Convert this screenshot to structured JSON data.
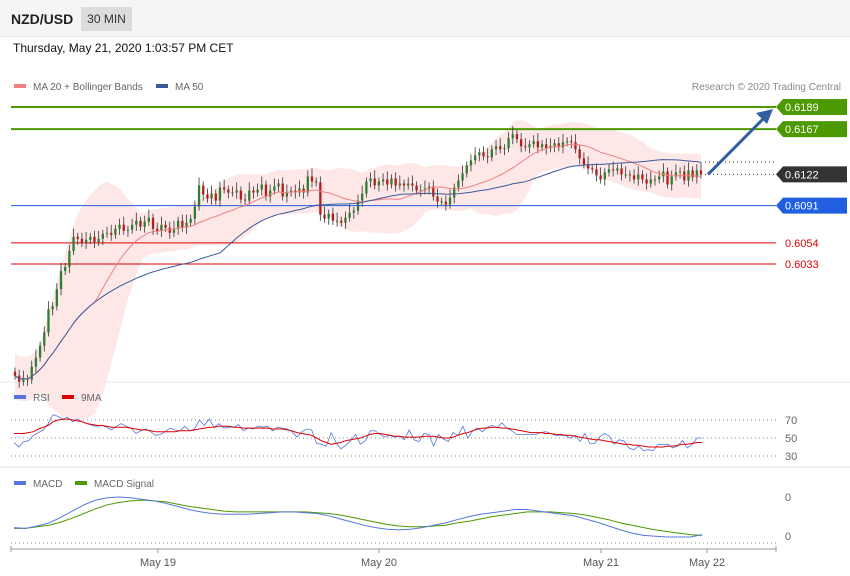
{
  "header": {
    "pair": "NZD/USD",
    "timeframe": "30 MIN",
    "datetime": "Thursday, May 21, 2020 1:03:57 PM CET"
  },
  "colors": {
    "resistance": "#4c9a00",
    "current": "#333333",
    "pivot": "#1f5fe0",
    "support": "#e00000",
    "ma20": "#f08080",
    "ma50": "#3a5a9a",
    "band": "#fde3e3",
    "up_candle": "#2e7d32",
    "down_candle": "#b71c1c",
    "rsi": "#5577dd",
    "rsi_ma": "#dd0000",
    "macd": "#5577dd",
    "macd_signal": "#4c9a00",
    "arrow": "#2f5fa0"
  },
  "chart_data": [
    {
      "type": "candlestick",
      "legend": [
        {
          "label": "MA 20 + Bollinger Bands",
          "color": "#f08080"
        },
        {
          "label": "MA 50",
          "color": "#3a5a9a"
        }
      ],
      "credit": "Research © 2020 Trading Central",
      "x_ticks": [
        "May 19",
        "May 20",
        "May 21",
        "May 22"
      ],
      "levels": [
        {
          "value": 0.6189,
          "label": "0.6189",
          "kind": "resistance"
        },
        {
          "value": 0.6167,
          "label": "0.6167",
          "kind": "resistance"
        },
        {
          "value": 0.6122,
          "label": "0.6122",
          "kind": "current"
        },
        {
          "value": 0.6091,
          "label": "0.6091",
          "kind": "pivot"
        },
        {
          "value": 0.6054,
          "label": "0.6054",
          "kind": "support"
        },
        {
          "value": 0.6033,
          "label": "0.6033",
          "kind": "support"
        }
      ],
      "close_series": [
        0.5922,
        0.5916,
        0.5919,
        0.5918,
        0.5931,
        0.594,
        0.5952,
        0.5965,
        0.5988,
        0.5991,
        0.6008,
        0.6026,
        0.603,
        0.6046,
        0.606,
        0.6058,
        0.6054,
        0.6057,
        0.606,
        0.6055,
        0.6058,
        0.6063,
        0.6064,
        0.6062,
        0.6068,
        0.6072,
        0.6066,
        0.6067,
        0.6072,
        0.6076,
        0.607,
        0.6075,
        0.6079,
        0.6068,
        0.6066,
        0.6072,
        0.6069,
        0.6064,
        0.6068,
        0.6076,
        0.6069,
        0.6074,
        0.6078,
        0.609,
        0.6111,
        0.6102,
        0.6098,
        0.6103,
        0.6096,
        0.6109,
        0.6107,
        0.6104,
        0.6104,
        0.6106,
        0.6097,
        0.6096,
        0.6106,
        0.6104,
        0.6107,
        0.6112,
        0.61,
        0.6106,
        0.611,
        0.6113,
        0.61,
        0.6104,
        0.6106,
        0.6104,
        0.6108,
        0.6104,
        0.612,
        0.6115,
        0.6114,
        0.6082,
        0.6078,
        0.6083,
        0.6076,
        0.6076,
        0.6074,
        0.6079,
        0.6084,
        0.6086,
        0.6096,
        0.6103,
        0.6115,
        0.6118,
        0.6111,
        0.6115,
        0.6117,
        0.6112,
        0.6118,
        0.6111,
        0.6113,
        0.6111,
        0.6113,
        0.6111,
        0.6106,
        0.6106,
        0.6108,
        0.611,
        0.61,
        0.6095,
        0.6095,
        0.6092,
        0.6099,
        0.6109,
        0.6116,
        0.6123,
        0.6131,
        0.6136,
        0.6141,
        0.6144,
        0.614,
        0.6139,
        0.6147,
        0.615,
        0.6147,
        0.6148,
        0.6158,
        0.6162,
        0.6157,
        0.615,
        0.6149,
        0.6152,
        0.6155,
        0.6149,
        0.6152,
        0.6148,
        0.615,
        0.6153,
        0.6149,
        0.6154,
        0.6155,
        0.6154,
        0.6147,
        0.6138,
        0.6132,
        0.6128,
        0.6127,
        0.6121,
        0.6117,
        0.6124,
        0.6127,
        0.6126,
        0.6128,
        0.6122,
        0.6122,
        0.6121,
        0.6117,
        0.6122,
        0.6117,
        0.6113,
        0.6117,
        0.6117,
        0.612,
        0.6125,
        0.6112,
        0.612,
        0.6124,
        0.6125,
        0.6116,
        0.6126,
        0.6119,
        0.6126,
        0.6122
      ],
      "y_range": [
        0.5905,
        0.62
      ]
    },
    {
      "type": "line",
      "legend": [
        {
          "label": "RSI",
          "color": "#5577dd"
        },
        {
          "label": "9MA",
          "color": "#dd0000"
        }
      ],
      "y_ticks": [
        "70",
        "50",
        "30"
      ],
      "rsi": [
        45,
        40,
        46,
        47,
        53,
        56,
        59,
        66,
        76,
        74,
        71,
        73,
        68,
        71,
        68,
        66,
        64,
        63,
        64,
        62,
        59,
        63,
        66,
        63,
        61,
        55,
        58,
        60,
        57,
        53,
        54,
        57,
        61,
        59,
        58,
        63,
        58,
        60,
        70,
        64,
        71,
        62,
        66,
        61,
        62,
        62,
        65,
        58,
        61,
        60,
        63,
        62,
        63,
        58,
        62,
        61,
        60,
        57,
        51,
        57,
        60,
        59,
        44,
        43,
        41,
        56,
        45,
        38,
        42,
        47,
        54,
        43,
        47,
        58,
        58,
        54,
        51,
        53,
        51,
        52,
        48,
        59,
        48,
        46,
        55,
        54,
        41,
        54,
        49,
        46,
        56,
        53,
        63,
        50,
        58,
        61,
        57,
        62,
        64,
        61,
        67,
        61,
        58,
        54,
        54,
        54,
        54,
        54,
        56,
        57,
        55,
        53,
        53,
        53,
        50,
        53,
        46,
        55,
        44,
        44,
        51,
        55,
        52,
        43,
        48,
        47,
        39,
        37,
        41,
        36,
        37,
        36,
        43,
        43,
        43,
        39,
        41,
        47,
        39,
        43,
        50,
        50
      ],
      "rsi_ma": [
        55,
        55,
        55,
        56,
        57,
        60,
        62,
        64,
        68,
        70,
        71,
        71,
        70,
        69,
        68,
        66,
        65,
        64,
        64,
        63,
        62,
        62,
        62,
        62,
        61,
        60,
        59,
        59,
        58,
        57,
        57,
        57,
        57,
        57,
        58,
        58,
        58,
        59,
        60,
        61,
        62,
        62,
        63,
        63,
        63,
        62,
        62,
        61,
        61,
        61,
        61,
        61,
        61,
        60,
        60,
        60,
        59,
        58,
        56,
        55,
        54,
        53,
        50,
        47,
        45,
        43,
        44,
        45,
        47,
        48,
        49,
        50,
        52,
        54,
        55,
        55,
        54,
        53,
        52,
        52,
        51,
        51,
        51,
        51,
        52,
        52,
        52,
        51,
        50,
        50,
        51,
        53,
        55,
        56,
        58,
        60,
        61,
        61,
        62,
        62,
        61,
        61,
        60,
        59,
        58,
        57,
        56,
        56,
        56,
        55,
        55,
        54,
        54,
        53,
        53,
        52,
        51,
        50,
        49,
        48,
        48,
        47,
        46,
        45,
        44,
        43,
        43,
        42,
        42,
        41,
        40,
        40,
        40,
        40,
        41,
        41,
        42,
        43,
        43,
        44,
        45,
        45
      ]
    },
    {
      "type": "line",
      "legend": [
        {
          "label": "MACD",
          "color": "#5577dd"
        },
        {
          "label": "MACD Signal",
          "color": "#4c9a00"
        }
      ],
      "y_ticks": [
        "0",
        "0"
      ],
      "macd": [
        0.0001,
        0.0,
        0.0003,
        0.0007,
        0.0014,
        0.0022,
        0.003,
        0.0036,
        0.0039,
        0.004,
        0.0039,
        0.0037,
        0.0035,
        0.0032,
        0.0028,
        0.0024,
        0.0021,
        0.0019,
        0.0018,
        0.0018,
        0.0018,
        0.0019,
        0.002,
        0.0021,
        0.0021,
        0.002,
        0.0019,
        0.0016,
        0.0012,
        0.0008,
        0.0004,
        0.0001,
        -0.0001,
        -0.0002,
        -0.0001,
        0.0001,
        0.0004,
        0.0007,
        0.0011,
        0.0015,
        0.0018,
        0.002,
        0.0022,
        0.0024,
        0.0024,
        0.0022,
        0.002,
        0.0018,
        0.0016,
        0.0012,
        0.0008,
        0.0003,
        -0.0002,
        -0.0006,
        -0.0009,
        -0.001,
        -0.0011,
        -0.0011,
        -0.0011,
        -0.0008
      ],
      "macd_signal": [
        0.0,
        0.0,
        0.0002,
        0.0004,
        0.0008,
        0.0013,
        0.0019,
        0.0025,
        0.003,
        0.0033,
        0.0035,
        0.0036,
        0.0035,
        0.0034,
        0.0031,
        0.0028,
        0.0026,
        0.0024,
        0.0022,
        0.0021,
        0.0021,
        0.0021,
        0.0021,
        0.0021,
        0.0021,
        0.0021,
        0.002,
        0.0019,
        0.0017,
        0.0014,
        0.0011,
        0.0008,
        0.0005,
        0.0003,
        0.0002,
        0.0002,
        0.0003,
        0.0004,
        0.0007,
        0.0009,
        0.0012,
        0.0015,
        0.0017,
        0.0019,
        0.0021,
        0.0021,
        0.0021,
        0.002,
        0.0019,
        0.0017,
        0.0014,
        0.0011,
        0.0007,
        0.0004,
        0.0001,
        -0.0002,
        -0.0004,
        -0.0006,
        -0.0008,
        -0.0009
      ]
    }
  ]
}
